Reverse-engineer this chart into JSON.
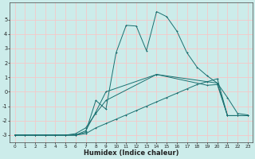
{
  "title": "",
  "xlabel": "Humidex (Indice chaleur)",
  "ylabel": "",
  "bg_color": "#ccecea",
  "grid_color": "#f5c8c8",
  "line_color": "#1a7070",
  "xlim": [
    -0.5,
    23.5
  ],
  "ylim": [
    -3.5,
    6.2
  ],
  "xticks": [
    0,
    1,
    2,
    3,
    4,
    5,
    6,
    7,
    8,
    9,
    10,
    11,
    12,
    13,
    14,
    15,
    16,
    17,
    18,
    19,
    20,
    21,
    22,
    23
  ],
  "yticks": [
    -3,
    -2,
    -1,
    0,
    1,
    2,
    3,
    4,
    5
  ],
  "line1_x": [
    0,
    1,
    2,
    3,
    4,
    5,
    6,
    7,
    8,
    9,
    10,
    11,
    12,
    13,
    14,
    15,
    16,
    17,
    18,
    19,
    20,
    21,
    22,
    23
  ],
  "line1_y": [
    -3,
    -3,
    -3,
    -3,
    -3,
    -3,
    -3,
    -2.8,
    -0.6,
    -1.2,
    2.7,
    4.6,
    4.55,
    2.85,
    5.55,
    5.2,
    4.2,
    2.7,
    1.7,
    1.1,
    0.6,
    -0.4,
    -1.5,
    -1.6
  ],
  "line2_x": [
    0,
    1,
    2,
    3,
    4,
    5,
    6,
    7,
    8,
    9,
    14,
    19,
    20,
    21,
    22,
    23
  ],
  "line2_y": [
    -3,
    -3,
    -3,
    -3,
    -3,
    -3,
    -3,
    -2.7,
    -1.4,
    0,
    1.2,
    0.45,
    0.5,
    -1.65,
    -1.65,
    -1.65
  ],
  "line3_x": [
    0,
    1,
    2,
    3,
    4,
    5,
    6,
    7,
    8,
    9,
    14,
    20,
    21,
    22,
    23
  ],
  "line3_y": [
    -3,
    -3,
    -3,
    -3,
    -3,
    -3,
    -2.9,
    -2.5,
    -1.5,
    -0.6,
    1.2,
    0.6,
    -1.65,
    -1.65,
    -1.65
  ],
  "line4_x": [
    0,
    1,
    2,
    3,
    4,
    5,
    6,
    7,
    8,
    9,
    10,
    11,
    12,
    13,
    14,
    15,
    16,
    17,
    18,
    19,
    20,
    21,
    22,
    23
  ],
  "line4_y": [
    -3,
    -3,
    -3,
    -3,
    -3,
    -3,
    -3,
    -2.9,
    -2.5,
    -2.2,
    -1.9,
    -1.6,
    -1.3,
    -1.0,
    -0.7,
    -0.4,
    -0.1,
    0.2,
    0.5,
    0.7,
    0.9,
    -1.65,
    -1.65,
    -1.65
  ]
}
